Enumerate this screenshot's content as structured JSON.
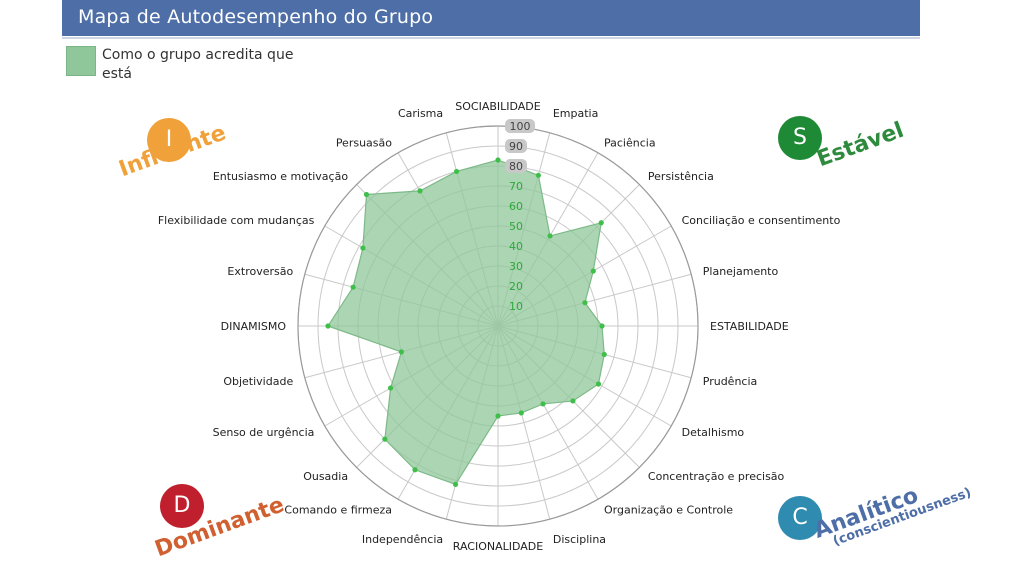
{
  "header": {
    "title": "Mapa de Autodesempenho do Grupo"
  },
  "legend": {
    "label": "Como o grupo acredita que está"
  },
  "quadrants": {
    "influente": {
      "letter": "I",
      "label": "Influente",
      "color": "#f0a13a",
      "circle_color": "#f0a13a"
    },
    "estavel": {
      "letter": "S",
      "label": "Estável",
      "color": "#2e8b3e",
      "circle_color": "#1f8a35"
    },
    "dominante": {
      "letter": "D",
      "label": "Dominante",
      "color": "#d06030",
      "circle_color": "#c0202e"
    },
    "analitico": {
      "letter": "C",
      "label": "Analítico",
      "sublabel": "(conscientiousness)",
      "color": "#4d6ea6",
      "circle_color": "#2f8bb0"
    }
  },
  "chart_data": {
    "type": "radar",
    "categories": [
      "SOCIABILIDADE",
      "Empatia",
      "Paciência",
      "Persistência",
      "Conciliação e consentimento",
      "Planejamento",
      "ESTABILIDADE",
      "Prudência",
      "Detalhismo",
      "Concentração e precisão",
      "Organização e Controle",
      "Disciplina",
      "RACIONALIDADE",
      "Independência",
      "Comando e firmeza",
      "Ousadia",
      "Senso de urgência",
      "Objetividade",
      "DINAMISMO",
      "Extroversão",
      "Flexibilidade com mudanças",
      "Entusiasmo e motivação",
      "Persuasão",
      "Carisma"
    ],
    "series": [
      {
        "name": "Como o grupo acredita que está",
        "values": [
          83,
          78,
          52,
          73,
          55,
          45,
          52,
          55,
          58,
          53,
          45,
          45,
          45,
          82,
          83,
          80,
          62,
          50,
          85,
          75,
          78,
          93,
          78,
          80
        ],
        "color": "#8fc79a"
      }
    ],
    "rlim": [
      0,
      100
    ],
    "rticks": [
      "10",
      "20",
      "30",
      "40",
      "50",
      "60",
      "70",
      "80",
      "90",
      "100"
    ],
    "grid": true
  }
}
